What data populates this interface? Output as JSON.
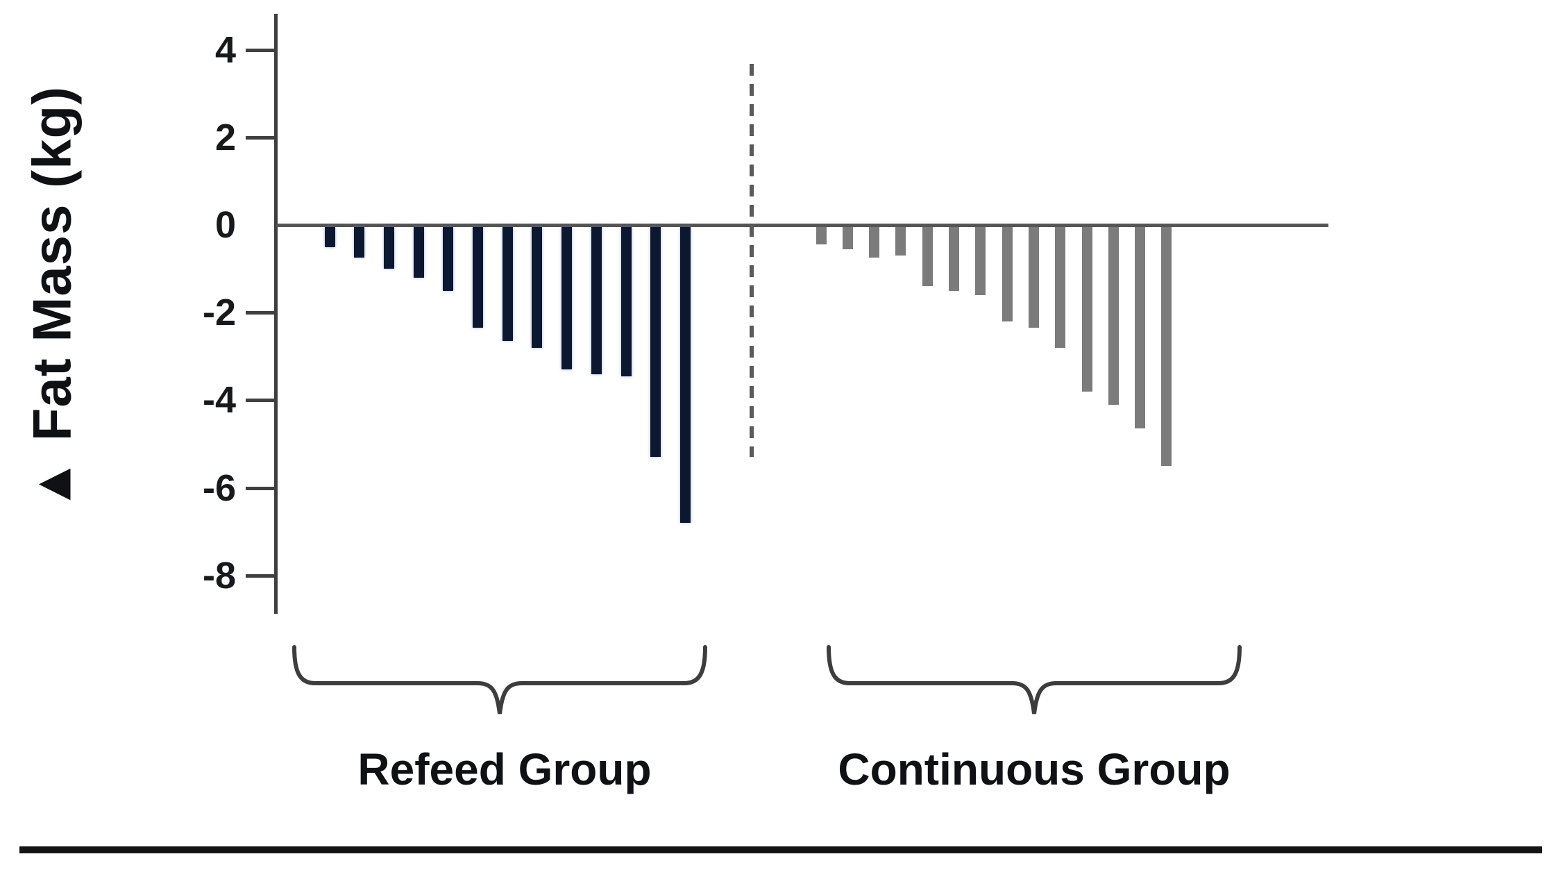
{
  "chart_data": {
    "type": "bar",
    "orientation": "vertical",
    "ylabel": "▲ Fat Mass (kg)",
    "yticks": [
      4,
      2,
      0,
      -2,
      -4,
      -6,
      -8
    ],
    "ytick_labels": [
      "4",
      "2",
      "0",
      "-2",
      "-4",
      "-6",
      "-8"
    ],
    "ylim": [
      -8.9,
      4.8
    ],
    "grid": false,
    "zero_baseline": true,
    "groups": [
      {
        "name": "Refeed Group",
        "color": "#0c1830",
        "values": [
          -0.5,
          -0.75,
          -1.0,
          -1.2,
          -1.5,
          -2.35,
          -2.65,
          -2.8,
          -3.3,
          -3.4,
          -3.45,
          -5.3,
          -6.8
        ]
      },
      {
        "name": "Continuous Group",
        "color": "#7b7b7b",
        "values": [
          -0.45,
          -0.55,
          -0.75,
          -0.7,
          -1.4,
          -1.5,
          -1.6,
          -2.2,
          -2.35,
          -2.8,
          -3.8,
          -4.1,
          -4.65,
          -5.5
        ]
      }
    ]
  }
}
